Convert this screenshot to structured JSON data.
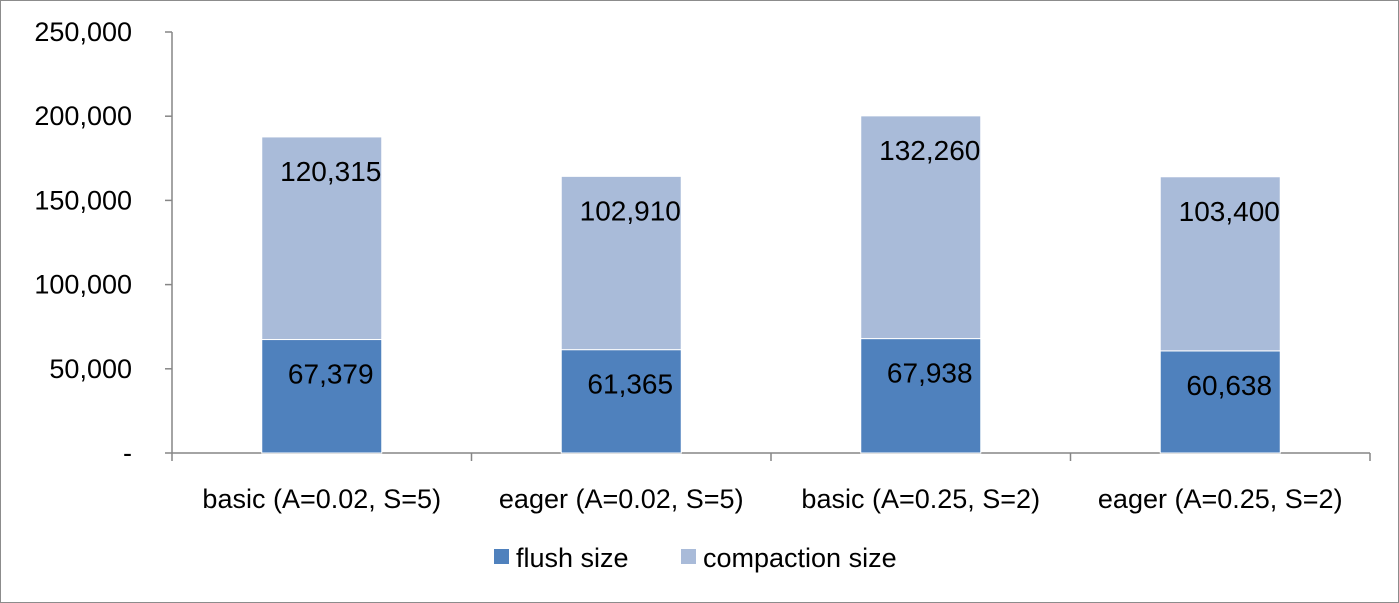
{
  "chart_data": {
    "type": "bar",
    "stacked": true,
    "title": "",
    "xlabel": "",
    "ylabel": "",
    "categories": [
      "basic (A=0.02, S=5)",
      "eager (A=0.02, S=5)",
      "basic (A=0.25, S=2)",
      "eager (A=0.25, S=2)"
    ],
    "series": [
      {
        "name": "flush size",
        "color": "#4f81bd",
        "values": [
          67379,
          61365,
          67938,
          60638
        ]
      },
      {
        "name": "compaction size",
        "color": "#a9bbd9",
        "values": [
          120315,
          102910,
          132260,
          103400
        ]
      }
    ],
    "data_labels": {
      "flush size": [
        "67,379",
        "61,365",
        "67,938",
        "60,638"
      ],
      "compaction size": [
        "120,315",
        "102,910",
        "132,260",
        "103,400"
      ]
    },
    "ylim": [
      0,
      250000
    ],
    "yticks": [
      0,
      50000,
      100000,
      150000,
      200000,
      250000
    ],
    "ytick_labels": [
      "-",
      "50,000",
      "100,000",
      "150,000",
      "200,000",
      "250,000"
    ],
    "grid": false,
    "legend_position": "bottom"
  }
}
